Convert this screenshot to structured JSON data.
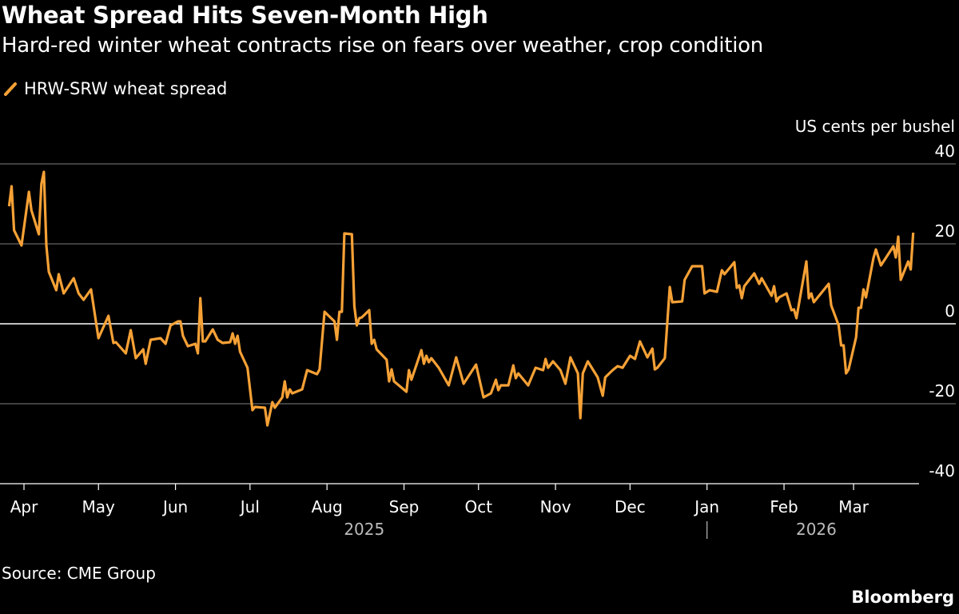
{
  "title": "Wheat Spread Hits Seven-Month High",
  "subtitle": "Hard-red winter wheat contracts rise on fears over weather, crop condition",
  "source": "Source: CME Group",
  "brand": "Bloomberg",
  "colors": {
    "series": "#f6a136",
    "background": "#000000",
    "grid": "#666666",
    "zero_line": "#ffffff"
  },
  "chart_data": {
    "type": "line",
    "title": "Wheat Spread Hits Seven-Month High",
    "ylabel": "US cents per bushel",
    "ylim": [
      -40,
      40
    ],
    "yticks": [
      40,
      20,
      0,
      -20,
      -40
    ],
    "y_axis_position": "right",
    "grid": true,
    "legend_placement": "top-left",
    "xticks": [
      {
        "date": "2025-04-01",
        "label": "Apr"
      },
      {
        "date": "2025-05-01",
        "label": "May"
      },
      {
        "date": "2025-06-01",
        "label": "Jun"
      },
      {
        "date": "2025-07-01",
        "label": "Jul"
      },
      {
        "date": "2025-08-01",
        "label": "Aug"
      },
      {
        "date": "2025-09-01",
        "label": "Sep"
      },
      {
        "date": "2025-10-01",
        "label": "Oct"
      },
      {
        "date": "2025-11-01",
        "label": "Nov"
      },
      {
        "date": "2025-12-01",
        "label": "Dec"
      },
      {
        "date": "2026-01-01",
        "label": "Jan"
      },
      {
        "date": "2026-02-01",
        "label": "Feb"
      },
      {
        "date": "2026-03-01",
        "label": "Mar"
      }
    ],
    "year_labels": [
      {
        "label": "2025",
        "center": "2025-08-16"
      },
      {
        "label": "2026",
        "center": "2026-02-14"
      }
    ],
    "year_divider": "2026-01-01",
    "series": [
      {
        "name": "HRW-SRW wheat spread",
        "points": [
          [
            "2025-03-26",
            29.4
          ],
          [
            "2025-03-27",
            34.4
          ],
          [
            "2025-03-28",
            23.4
          ],
          [
            "2025-03-31",
            19.6
          ],
          [
            "2025-04-03",
            33
          ],
          [
            "2025-04-04",
            28.4
          ],
          [
            "2025-04-07",
            22.4
          ],
          [
            "2025-04-08",
            35
          ],
          [
            "2025-04-09",
            38
          ],
          [
            "2025-04-10",
            19.6
          ],
          [
            "2025-04-11",
            13
          ],
          [
            "2025-04-14",
            8.4
          ],
          [
            "2025-04-15",
            12.4
          ],
          [
            "2025-04-17",
            7.6
          ],
          [
            "2025-04-21",
            11.4
          ],
          [
            "2025-04-23",
            7.6
          ],
          [
            "2025-04-25",
            6
          ],
          [
            "2025-04-28",
            8.6
          ],
          [
            "2025-05-01",
            -3.6
          ],
          [
            "2025-05-05",
            2
          ],
          [
            "2025-05-07",
            -4.8
          ],
          [
            "2025-05-08",
            -4.6
          ],
          [
            "2025-05-12",
            -7.4
          ],
          [
            "2025-05-14",
            -1.6
          ],
          [
            "2025-05-16",
            -8.6
          ],
          [
            "2025-05-19",
            -6.4
          ],
          [
            "2025-05-20",
            -10
          ],
          [
            "2025-05-22",
            -4
          ],
          [
            "2025-05-26",
            -3.6
          ],
          [
            "2025-05-28",
            -5
          ],
          [
            "2025-05-30",
            -0.4
          ],
          [
            "2025-06-02",
            0.6
          ],
          [
            "2025-06-03",
            0.6
          ],
          [
            "2025-06-04",
            -3
          ],
          [
            "2025-06-06",
            -5.6
          ],
          [
            "2025-06-09",
            -5
          ],
          [
            "2025-06-10",
            -7.4
          ],
          [
            "2025-06-11",
            6.4
          ],
          [
            "2025-06-12",
            -4.4
          ],
          [
            "2025-06-13",
            -4.4
          ],
          [
            "2025-06-16",
            -1.4
          ],
          [
            "2025-06-18",
            -4
          ],
          [
            "2025-06-20",
            -4.8
          ],
          [
            "2025-06-23",
            -4.6
          ],
          [
            "2025-06-24",
            -2.4
          ],
          [
            "2025-06-25",
            -5
          ],
          [
            "2025-06-26",
            -3
          ],
          [
            "2025-06-27",
            -7
          ],
          [
            "2025-06-30",
            -11
          ],
          [
            "2025-07-02",
            -21.6
          ],
          [
            "2025-07-03",
            -20.8
          ],
          [
            "2025-07-07",
            -21
          ],
          [
            "2025-07-08",
            -25.4
          ],
          [
            "2025-07-10",
            -19.6
          ],
          [
            "2025-07-11",
            -21
          ],
          [
            "2025-07-14",
            -18.4
          ],
          [
            "2025-07-15",
            -14.4
          ],
          [
            "2025-07-16",
            -18.4
          ],
          [
            "2025-07-17",
            -16.4
          ],
          [
            "2025-07-18",
            -17.4
          ],
          [
            "2025-07-22",
            -16.4
          ],
          [
            "2025-07-24",
            -11.6
          ],
          [
            "2025-07-28",
            -12.6
          ],
          [
            "2025-07-29",
            -11.4
          ],
          [
            "2025-07-31",
            3
          ],
          [
            "2025-08-04",
            0.6
          ],
          [
            "2025-08-05",
            -4
          ],
          [
            "2025-08-06",
            3
          ],
          [
            "2025-08-07",
            3
          ],
          [
            "2025-08-08",
            22.6
          ],
          [
            "2025-08-11",
            22.4
          ],
          [
            "2025-08-12",
            4.4
          ],
          [
            "2025-08-13",
            -0.4
          ],
          [
            "2025-08-14",
            1.4
          ],
          [
            "2025-08-15",
            1.6
          ],
          [
            "2025-08-18",
            3.4
          ],
          [
            "2025-08-19",
            -5
          ],
          [
            "2025-08-20",
            -4
          ],
          [
            "2025-08-21",
            -6.4
          ],
          [
            "2025-08-25",
            -9
          ],
          [
            "2025-08-26",
            -14.4
          ],
          [
            "2025-08-27",
            -11.4
          ],
          [
            "2025-08-28",
            -14.4
          ],
          [
            "2025-09-02",
            -17
          ],
          [
            "2025-09-03",
            -11.6
          ],
          [
            "2025-09-04",
            -14
          ],
          [
            "2025-09-08",
            -6.6
          ],
          [
            "2025-09-09",
            -10
          ],
          [
            "2025-09-10",
            -8
          ],
          [
            "2025-09-11",
            -9.6
          ],
          [
            "2025-09-12",
            -8.6
          ],
          [
            "2025-09-15",
            -11
          ],
          [
            "2025-09-19",
            -15.4
          ],
          [
            "2025-09-22",
            -8.4
          ],
          [
            "2025-09-25",
            -15
          ],
          [
            "2025-09-30",
            -10.2
          ],
          [
            "2025-10-03",
            -18.4
          ],
          [
            "2025-10-06",
            -17.4
          ],
          [
            "2025-10-08",
            -14
          ],
          [
            "2025-10-09",
            -16.6
          ],
          [
            "2025-10-10",
            -15.4
          ],
          [
            "2025-10-13",
            -15.4
          ],
          [
            "2025-10-15",
            -10.4
          ],
          [
            "2025-10-16",
            -13.6
          ],
          [
            "2025-10-17",
            -12.4
          ],
          [
            "2025-10-21",
            -15.4
          ],
          [
            "2025-10-24",
            -11
          ],
          [
            "2025-10-27",
            -11.6
          ],
          [
            "2025-10-28",
            -8.8
          ],
          [
            "2025-10-29",
            -11
          ],
          [
            "2025-10-31",
            -9.4
          ],
          [
            "2025-11-03",
            -11.6
          ],
          [
            "2025-11-05",
            -15
          ],
          [
            "2025-11-07",
            -8.4
          ],
          [
            "2025-11-10",
            -12.4
          ],
          [
            "2025-11-11",
            -23.6
          ],
          [
            "2025-11-12",
            -12.4
          ],
          [
            "2025-11-14",
            -9.4
          ],
          [
            "2025-11-18",
            -13.4
          ],
          [
            "2025-11-20",
            -18
          ],
          [
            "2025-11-21",
            -13.4
          ],
          [
            "2025-11-24",
            -11.6
          ],
          [
            "2025-11-26",
            -10.6
          ],
          [
            "2025-11-28",
            -11
          ],
          [
            "2025-12-01",
            -8
          ],
          [
            "2025-12-03",
            -8.8
          ],
          [
            "2025-12-05",
            -4.4
          ],
          [
            "2025-12-08",
            -8.4
          ],
          [
            "2025-12-10",
            -6.2
          ],
          [
            "2025-12-11",
            -11.4
          ],
          [
            "2025-12-12",
            -11
          ],
          [
            "2025-12-15",
            -8.6
          ],
          [
            "2025-12-17",
            9.2
          ],
          [
            "2025-12-18",
            5.4
          ],
          [
            "2025-12-22",
            5.6
          ],
          [
            "2025-12-23",
            11
          ],
          [
            "2025-12-26",
            14.4
          ],
          [
            "2025-12-30",
            14.4
          ],
          [
            "2025-12-31",
            7.6
          ],
          [
            "2026-01-02",
            8.4
          ],
          [
            "2026-01-05",
            8
          ],
          [
            "2026-01-07",
            13.4
          ],
          [
            "2026-01-08",
            12.4
          ],
          [
            "2026-01-12",
            15.4
          ],
          [
            "2026-01-13",
            9
          ],
          [
            "2026-01-14",
            9.6
          ],
          [
            "2026-01-15",
            6.4
          ],
          [
            "2026-01-16",
            9.4
          ],
          [
            "2026-01-20",
            12.6
          ],
          [
            "2026-01-22",
            10
          ],
          [
            "2026-01-23",
            11.4
          ],
          [
            "2026-01-27",
            7
          ],
          [
            "2026-01-28",
            9.4
          ],
          [
            "2026-01-29",
            5.6
          ],
          [
            "2026-01-30",
            6.6
          ],
          [
            "2026-02-02",
            7.6
          ],
          [
            "2026-02-04",
            3.4
          ],
          [
            "2026-02-05",
            3.6
          ],
          [
            "2026-02-06",
            1.4
          ],
          [
            "2026-02-10",
            15.6
          ],
          [
            "2026-02-11",
            6.4
          ],
          [
            "2026-02-12",
            7.6
          ],
          [
            "2026-02-13",
            5.4
          ],
          [
            "2026-02-19",
            10
          ],
          [
            "2026-02-20",
            4.6
          ],
          [
            "2026-02-23",
            -0.4
          ],
          [
            "2026-02-24",
            -5.4
          ],
          [
            "2026-02-25",
            -5.4
          ],
          [
            "2026-02-26",
            -12.4
          ],
          [
            "2026-02-27",
            -11.4
          ],
          [
            "2026-03-02",
            -3.4
          ],
          [
            "2026-03-03",
            4
          ],
          [
            "2026-03-04",
            4
          ],
          [
            "2026-03-05",
            8.6
          ],
          [
            "2026-03-06",
            6.6
          ],
          [
            "2026-03-09",
            16.4
          ],
          [
            "2026-03-10",
            18.6
          ],
          [
            "2026-03-12",
            14.6
          ],
          [
            "2026-03-16",
            18.4
          ],
          [
            "2026-03-17",
            19.4
          ],
          [
            "2026-03-18",
            16.6
          ],
          [
            "2026-03-19",
            21.8
          ],
          [
            "2026-03-20",
            11
          ],
          [
            "2026-03-23",
            15.6
          ],
          [
            "2026-03-24",
            13.6
          ],
          [
            "2026-03-25",
            22.8
          ]
        ]
      }
    ]
  }
}
